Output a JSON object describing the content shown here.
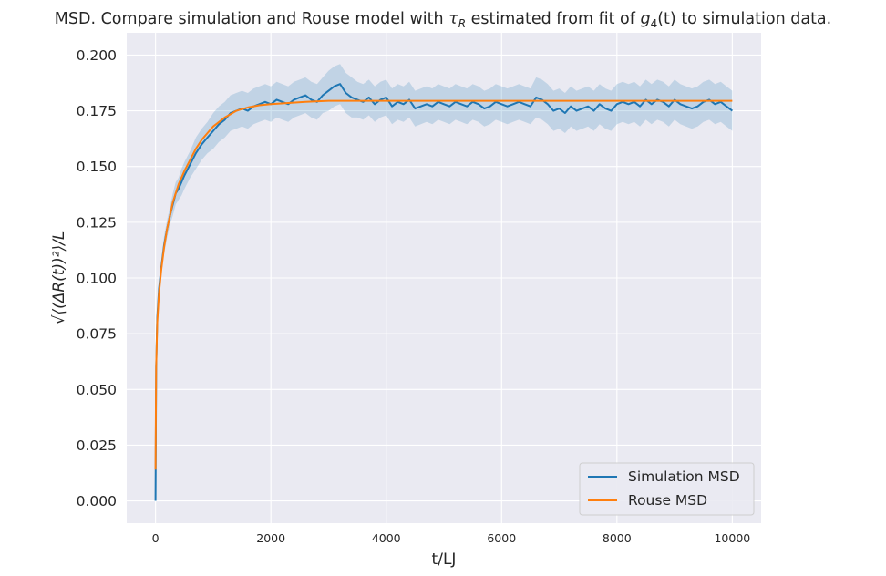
{
  "chart_data": {
    "type": "line",
    "title_parts": {
      "pre": "MSD. Compare simulation and Rouse model with ",
      "tau": "τ",
      "tau_sub": "R",
      "mid": " estimated from fit of ",
      "g": "g",
      "g_sub": "4",
      "g_arg": "(t)",
      "post": " to simulation data."
    },
    "xlabel": "t/LJ",
    "ylabel": "√⟨(ΔR(t))²⟩/L",
    "xlim": [
      -500,
      10500
    ],
    "ylim": [
      -0.01,
      0.21
    ],
    "x_ticks": [
      0,
      2000,
      4000,
      6000,
      8000,
      10000
    ],
    "y_ticks": [
      0.0,
      0.025,
      0.05,
      0.075,
      0.1,
      0.125,
      0.15,
      0.175,
      0.2
    ],
    "x_tick_labels": [
      "0",
      "2000",
      "4000",
      "6000",
      "8000",
      "10000"
    ],
    "y_tick_labels": [
      "0.000",
      "0.025",
      "0.050",
      "0.075",
      "0.100",
      "0.125",
      "0.150",
      "0.175",
      "0.200"
    ],
    "grid": true,
    "legend_position": "lower-right",
    "series": [
      {
        "name": "Simulation MSD",
        "color": "#1f77b4",
        "band_color": "#1f77b4",
        "x": [
          0,
          10,
          30,
          60,
          100,
          150,
          200,
          250,
          300,
          350,
          400,
          450,
          500,
          600,
          700,
          800,
          900,
          1000,
          1100,
          1200,
          1300,
          1400,
          1500,
          1600,
          1700,
          1800,
          1900,
          2000,
          2100,
          2200,
          2300,
          2400,
          2500,
          2600,
          2700,
          2800,
          2900,
          3000,
          3100,
          3200,
          3300,
          3400,
          3500,
          3600,
          3700,
          3800,
          3900,
          4000,
          4100,
          4200,
          4300,
          4400,
          4500,
          4600,
          4700,
          4800,
          4900,
          5000,
          5100,
          5200,
          5300,
          5400,
          5500,
          5600,
          5700,
          5800,
          5900,
          6000,
          6100,
          6200,
          6300,
          6400,
          6500,
          6600,
          6700,
          6800,
          6900,
          7000,
          7100,
          7200,
          7300,
          7400,
          7500,
          7600,
          7700,
          7800,
          7900,
          8000,
          8100,
          8200,
          8300,
          8400,
          8500,
          8600,
          8700,
          8800,
          8900,
          9000,
          9100,
          9200,
          9300,
          9400,
          9500,
          9600,
          9700,
          9800,
          9900,
          10000
        ],
        "y": [
          0.0,
          0.06,
          0.082,
          0.095,
          0.105,
          0.115,
          0.122,
          0.128,
          0.133,
          0.138,
          0.14,
          0.143,
          0.146,
          0.151,
          0.156,
          0.16,
          0.163,
          0.166,
          0.169,
          0.171,
          0.174,
          0.175,
          0.176,
          0.175,
          0.177,
          0.178,
          0.179,
          0.178,
          0.18,
          0.179,
          0.178,
          0.18,
          0.181,
          0.182,
          0.18,
          0.179,
          0.182,
          0.184,
          0.186,
          0.187,
          0.183,
          0.181,
          0.18,
          0.179,
          0.181,
          0.178,
          0.18,
          0.181,
          0.177,
          0.179,
          0.178,
          0.18,
          0.176,
          0.177,
          0.178,
          0.177,
          0.179,
          0.178,
          0.177,
          0.179,
          0.178,
          0.177,
          0.179,
          0.178,
          0.176,
          0.177,
          0.179,
          0.178,
          0.177,
          0.178,
          0.179,
          0.178,
          0.177,
          0.181,
          0.18,
          0.178,
          0.175,
          0.176,
          0.174,
          0.177,
          0.175,
          0.176,
          0.177,
          0.175,
          0.178,
          0.176,
          0.175,
          0.178,
          0.179,
          0.178,
          0.179,
          0.177,
          0.18,
          0.178,
          0.18,
          0.179,
          0.177,
          0.18,
          0.178,
          0.177,
          0.176,
          0.177,
          0.179,
          0.18,
          0.178,
          0.179,
          0.177,
          0.175
        ],
        "band_halfwidth": [
          0.0,
          0.0,
          0.002,
          0.003,
          0.003,
          0.004,
          0.004,
          0.004,
          0.005,
          0.005,
          0.005,
          0.006,
          0.006,
          0.006,
          0.007,
          0.007,
          0.007,
          0.008,
          0.008,
          0.008,
          0.008,
          0.008,
          0.008,
          0.008,
          0.008,
          0.008,
          0.008,
          0.008,
          0.008,
          0.008,
          0.008,
          0.008,
          0.008,
          0.008,
          0.008,
          0.008,
          0.008,
          0.009,
          0.009,
          0.009,
          0.009,
          0.009,
          0.008,
          0.008,
          0.008,
          0.008,
          0.008,
          0.008,
          0.008,
          0.008,
          0.008,
          0.008,
          0.008,
          0.008,
          0.008,
          0.008,
          0.008,
          0.008,
          0.008,
          0.008,
          0.008,
          0.008,
          0.008,
          0.008,
          0.008,
          0.008,
          0.008,
          0.008,
          0.008,
          0.008,
          0.008,
          0.008,
          0.008,
          0.009,
          0.009,
          0.009,
          0.009,
          0.009,
          0.009,
          0.009,
          0.009,
          0.009,
          0.009,
          0.009,
          0.009,
          0.009,
          0.009,
          0.009,
          0.009,
          0.009,
          0.009,
          0.009,
          0.009,
          0.009,
          0.009,
          0.009,
          0.009,
          0.009,
          0.009,
          0.009,
          0.009,
          0.009,
          0.009,
          0.009,
          0.009,
          0.009,
          0.009,
          0.009
        ]
      },
      {
        "name": "Rouse MSD",
        "color": "#ff7f0e",
        "x": [
          0,
          10,
          30,
          60,
          100,
          150,
          200,
          250,
          300,
          400,
          500,
          600,
          700,
          800,
          900,
          1000,
          1200,
          1400,
          1600,
          1800,
          2000,
          2300,
          2600,
          3000,
          3500,
          4000,
          5000,
          6000,
          7000,
          8000,
          9000,
          10000
        ],
        "y": [
          0.014,
          0.06,
          0.08,
          0.093,
          0.104,
          0.114,
          0.122,
          0.128,
          0.134,
          0.142,
          0.148,
          0.153,
          0.158,
          0.162,
          0.165,
          0.168,
          0.172,
          0.175,
          0.1765,
          0.1775,
          0.178,
          0.1785,
          0.179,
          0.1795,
          0.1795,
          0.1795,
          0.1795,
          0.1795,
          0.1795,
          0.1795,
          0.1795,
          0.1795
        ]
      }
    ]
  }
}
